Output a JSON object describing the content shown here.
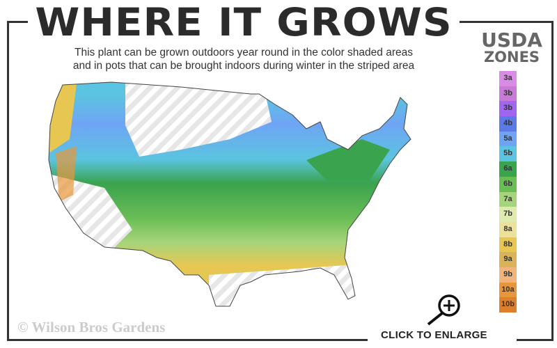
{
  "title": "WHERE IT GROWS",
  "subtitle_line1": "This plant can be grown outdoors year round in the color shaded areas",
  "subtitle_line2": "and in pots that can be brought indoors during winter in the striped area",
  "legend": {
    "title1": "USDA",
    "title2": "ZONES",
    "zones": [
      {
        "label": "3a",
        "color": "#d98be6"
      },
      {
        "label": "3b",
        "color": "#c77ad6"
      },
      {
        "label": "3b",
        "color": "#a066f0"
      },
      {
        "label": "4b",
        "color": "#5b7ae8"
      },
      {
        "label": "5a",
        "color": "#6fa4f5"
      },
      {
        "label": "5b",
        "color": "#5bc4e0"
      },
      {
        "label": "6a",
        "color": "#3aa34e"
      },
      {
        "label": "6b",
        "color": "#6abd55"
      },
      {
        "label": "7a",
        "color": "#a6d47a"
      },
      {
        "label": "7b",
        "color": "#dfeab0"
      },
      {
        "label": "8a",
        "color": "#ede09a"
      },
      {
        "label": "8b",
        "color": "#e7c752"
      },
      {
        "label": "9a",
        "color": "#d9b35a"
      },
      {
        "label": "9b",
        "color": "#f0b47c"
      },
      {
        "label": "10a",
        "color": "#e8963a"
      },
      {
        "label": "10b",
        "color": "#de7f2c"
      }
    ]
  },
  "copyright": "© Wilson Bros Gardens",
  "enlarge_label": "CLICK TO ENLARGE",
  "icons": {
    "enlarge": "magnifier-plus-icon"
  }
}
